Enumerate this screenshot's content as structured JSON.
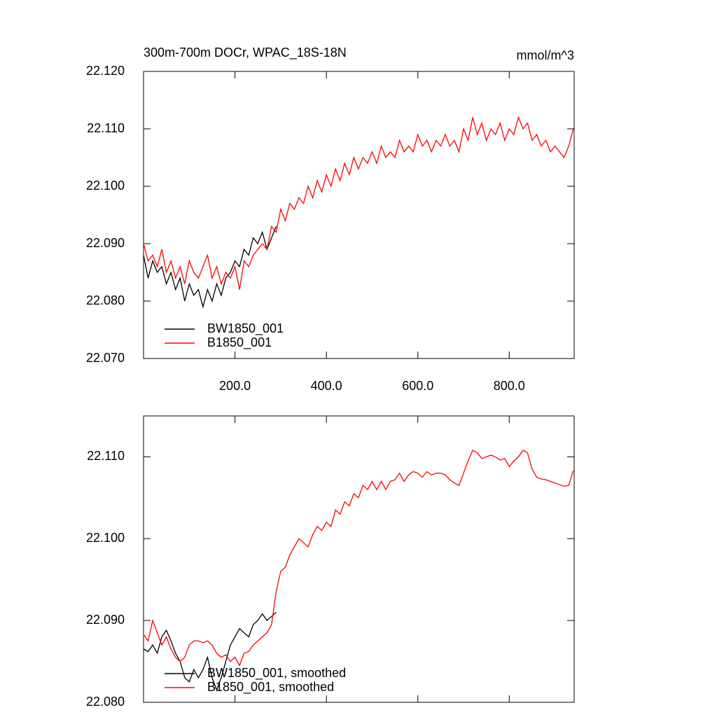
{
  "chart_data": [
    {
      "type": "line",
      "title": "300m-700m DOCr, WPAC_18S-18N",
      "units": "mmol/m^3",
      "x": [
        0,
        10,
        20,
        30,
        40,
        50,
        60,
        70,
        80,
        90,
        100,
        110,
        120,
        130,
        140,
        150,
        160,
        170,
        180,
        190,
        200,
        210,
        220,
        230,
        240,
        250,
        260,
        270,
        280,
        290,
        300,
        310,
        320,
        330,
        340,
        350,
        360,
        370,
        380,
        390,
        400,
        410,
        420,
        430,
        440,
        450,
        460,
        470,
        480,
        490,
        500,
        510,
        520,
        530,
        540,
        550,
        560,
        570,
        580,
        590,
        600,
        610,
        620,
        630,
        640,
        650,
        660,
        670,
        680,
        690,
        700,
        710,
        720,
        730,
        740,
        750,
        760,
        770,
        780,
        790,
        800,
        810,
        820,
        830,
        840,
        850,
        860,
        870,
        880,
        890,
        900,
        910,
        920,
        930,
        940
      ],
      "series": [
        {
          "name": "BW1850_001",
          "color": "#000000",
          "values": [
            22.088,
            22.084,
            22.087,
            22.085,
            22.086,
            22.083,
            22.085,
            22.082,
            22.084,
            22.08,
            22.083,
            22.081,
            22.082,
            22.079,
            22.082,
            22.08,
            22.083,
            22.081,
            22.084,
            22.085,
            22.087,
            22.086,
            22.089,
            22.088,
            22.091,
            22.09,
            22.092,
            22.089,
            22.091,
            22.093,
            null,
            null,
            null,
            null,
            null,
            null,
            null,
            null,
            null,
            null,
            null,
            null,
            null,
            null,
            null,
            null,
            null,
            null,
            null,
            null,
            null,
            null,
            null,
            null,
            null,
            null,
            null,
            null,
            null,
            null,
            null,
            null,
            null,
            null,
            null,
            null,
            null,
            null,
            null,
            null,
            null,
            null,
            null,
            null,
            null,
            null,
            null,
            null,
            null,
            null,
            null,
            null,
            null,
            null,
            null,
            null,
            null,
            null,
            null,
            null,
            null,
            null,
            null,
            null,
            null
          ]
        },
        {
          "name": "B1850_001",
          "color": "#ff0000",
          "values": [
            22.09,
            22.087,
            22.088,
            22.086,
            22.089,
            22.085,
            22.087,
            22.084,
            22.086,
            22.083,
            22.087,
            22.085,
            22.084,
            22.086,
            22.088,
            22.084,
            22.086,
            22.083,
            22.085,
            22.084,
            22.086,
            22.082,
            22.087,
            22.086,
            22.088,
            22.089,
            22.09,
            22.089,
            22.093,
            22.092,
            22.096,
            22.094,
            22.097,
            22.096,
            22.098,
            22.097,
            22.1,
            22.098,
            22.101,
            22.099,
            22.102,
            22.1,
            22.103,
            22.101,
            22.104,
            22.102,
            22.105,
            22.103,
            22.105,
            22.104,
            22.106,
            22.104,
            22.107,
            22.105,
            22.106,
            22.105,
            22.108,
            22.106,
            22.107,
            22.106,
            22.109,
            22.107,
            22.108,
            22.106,
            22.108,
            22.107,
            22.109,
            22.107,
            22.108,
            22.106,
            22.11,
            22.108,
            22.112,
            22.109,
            22.111,
            22.108,
            22.11,
            22.109,
            22.111,
            22.108,
            22.11,
            22.109,
            22.112,
            22.11,
            22.111,
            22.108,
            22.109,
            22.107,
            22.108,
            22.106,
            22.107,
            22.106,
            22.105,
            22.107,
            22.11
          ]
        }
      ],
      "xlim": [
        0,
        942
      ],
      "ylim": [
        22.07,
        22.12
      ],
      "xticks": [
        {
          "value": 200,
          "label": "200.0"
        },
        {
          "value": 400,
          "label": "400.0"
        },
        {
          "value": 600,
          "label": "600.0"
        },
        {
          "value": 800,
          "label": "800.0"
        }
      ],
      "yticks": [
        {
          "value": 22.07,
          "label": "22.070"
        },
        {
          "value": 22.08,
          "label": "22.080"
        },
        {
          "value": 22.09,
          "label": "22.090"
        },
        {
          "value": 22.1,
          "label": "22.100"
        },
        {
          "value": 22.11,
          "label": "22.110"
        },
        {
          "value": 22.12,
          "label": "22.120"
        }
      ]
    },
    {
      "type": "line",
      "x": [
        0,
        10,
        20,
        30,
        40,
        50,
        60,
        70,
        80,
        90,
        100,
        110,
        120,
        130,
        140,
        150,
        160,
        170,
        180,
        190,
        200,
        210,
        220,
        230,
        240,
        250,
        260,
        270,
        280,
        290,
        300,
        310,
        320,
        330,
        340,
        350,
        360,
        370,
        380,
        390,
        400,
        410,
        420,
        430,
        440,
        450,
        460,
        470,
        480,
        490,
        500,
        510,
        520,
        530,
        540,
        550,
        560,
        570,
        580,
        590,
        600,
        610,
        620,
        630,
        640,
        650,
        660,
        670,
        680,
        690,
        700,
        710,
        720,
        730,
        740,
        750,
        760,
        770,
        780,
        790,
        800,
        810,
        820,
        830,
        840,
        850,
        860,
        870,
        880,
        890,
        900,
        910,
        920,
        930,
        940
      ],
      "series": [
        {
          "name": "BW1850_001, smoothed",
          "color": "#000000",
          "values": [
            22.0865,
            22.0862,
            22.087,
            22.086,
            22.088,
            22.0888,
            22.0875,
            22.086,
            22.085,
            22.083,
            22.0825,
            22.084,
            22.083,
            22.084,
            22.0855,
            22.083,
            22.0815,
            22.083,
            22.085,
            22.087,
            22.088,
            22.089,
            22.0885,
            22.088,
            22.0895,
            22.09,
            22.0908,
            22.09,
            22.0905,
            22.091,
            null,
            null,
            null,
            null,
            null,
            null,
            null,
            null,
            null,
            null,
            null,
            null,
            null,
            null,
            null,
            null,
            null,
            null,
            null,
            null,
            null,
            null,
            null,
            null,
            null,
            null,
            null,
            null,
            null,
            null,
            null,
            null,
            null,
            null,
            null,
            null,
            null,
            null,
            null,
            null,
            null,
            null,
            null,
            null,
            null,
            null,
            null,
            null,
            null,
            null,
            null,
            null,
            null,
            null,
            null,
            null,
            null,
            null,
            null,
            null,
            null,
            null,
            null,
            null,
            null
          ]
        },
        {
          "name": "B1850_001, smoothed",
          "color": "#ff0000",
          "values": [
            22.0883,
            22.0875,
            22.09,
            22.0885,
            22.087,
            22.088,
            22.0865,
            22.0855,
            22.085,
            22.0855,
            22.087,
            22.0875,
            22.0875,
            22.0873,
            22.0875,
            22.087,
            22.086,
            22.0855,
            22.0858,
            22.085,
            22.0855,
            22.0845,
            22.086,
            22.0862,
            22.087,
            22.0875,
            22.088,
            22.0885,
            22.0895,
            22.0935,
            22.096,
            22.0965,
            22.098,
            22.099,
            22.1,
            22.0995,
            22.099,
            22.1005,
            22.1015,
            22.101,
            22.102,
            22.1015,
            22.1035,
            22.103,
            22.1045,
            22.104,
            22.1055,
            22.105,
            22.1065,
            22.106,
            22.107,
            22.106,
            22.107,
            22.106,
            22.107,
            22.1072,
            22.108,
            22.107,
            22.1078,
            22.1082,
            22.108,
            22.1075,
            22.1082,
            22.1078,
            22.108,
            22.108,
            22.1078,
            22.1072,
            22.1068,
            22.1065,
            22.108,
            22.1095,
            22.1108,
            22.1105,
            22.1098,
            22.11,
            22.1102,
            22.11,
            22.1096,
            22.1098,
            22.1088,
            22.1095,
            22.11,
            22.1108,
            22.1105,
            22.1085,
            22.1075,
            22.1073,
            22.1072,
            22.107,
            22.1068,
            22.1066,
            22.1064,
            22.1065,
            22.1083
          ]
        }
      ],
      "xlim": [
        0,
        942
      ],
      "ylim": [
        22.08,
        22.115
      ],
      "xticks": [
        200,
        400,
        600,
        800
      ],
      "yticks": [
        {
          "value": 22.08,
          "label": "22.080"
        },
        {
          "value": 22.09,
          "label": "22.090"
        },
        {
          "value": 22.1,
          "label": "22.100"
        },
        {
          "value": 22.11,
          "label": "22.110"
        }
      ]
    }
  ]
}
